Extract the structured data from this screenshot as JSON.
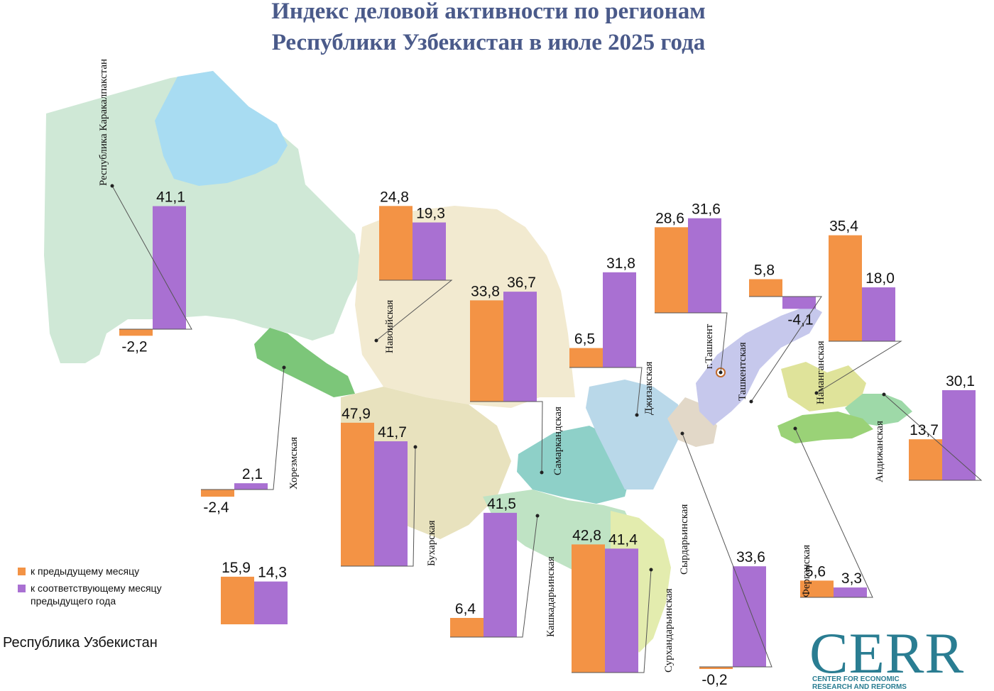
{
  "title": [
    "Индекс деловой активности по регионам",
    "Республики Узбекистан в июле 2025 года"
  ],
  "colors": {
    "month": "#f39345",
    "year": "#a970d2",
    "title": "#4a5a8a",
    "brand": "#2a7d92"
  },
  "legend": {
    "month": "к предыдущему месяцу",
    "year_line1": "к соответствующему месяцу",
    "year_line2": "предыдущего года"
  },
  "country_label": "Республика Узбекистан",
  "logo": {
    "big": "CERR",
    "line1": "CENTER FOR ECONOMIC",
    "line2": "RESEARCH AND REFORMS"
  },
  "chart_data": {
    "type": "bar",
    "series": [
      {
        "name": "к предыдущему месяцу",
        "key": "month"
      },
      {
        "name": "к соответствующему месяцу предыдущего года",
        "key": "year"
      }
    ],
    "regions": [
      {
        "name": "Республика Каракалпакстан",
        "month": -2.2,
        "year": 41.1,
        "month_label": "-2,2",
        "year_label": "41,1"
      },
      {
        "name": "Хорезмская",
        "month": -2.4,
        "year": 2.1,
        "month_label": "-2,4",
        "year_label": "2,1"
      },
      {
        "name": "Навоийская",
        "month": 24.8,
        "year": 19.3,
        "month_label": "24,8",
        "year_label": "19,3"
      },
      {
        "name": "Бухарская",
        "month": 47.9,
        "year": 41.7,
        "month_label": "47,9",
        "year_label": "41,7"
      },
      {
        "name": "Самаркандская",
        "month": 33.8,
        "year": 36.7,
        "month_label": "33,8",
        "year_label": "36,7"
      },
      {
        "name": "Кашкадарьинская",
        "month": 6.4,
        "year": 41.5,
        "month_label": "6,4",
        "year_label": "41,5"
      },
      {
        "name": "Сурхандарьинская",
        "month": 42.8,
        "year": 41.4,
        "month_label": "42,8",
        "year_label": "41,4"
      },
      {
        "name": "Джизакская",
        "month": 6.5,
        "year": 31.8,
        "month_label": "6,5",
        "year_label": "31,8"
      },
      {
        "name": "Сырдарьинская",
        "month": -0.2,
        "year": 33.6,
        "month_label": "-0,2",
        "year_label": "33,6"
      },
      {
        "name": "г.Ташкент",
        "month": 28.6,
        "year": 31.6,
        "month_label": "28,6",
        "year_label": "31,6"
      },
      {
        "name": "Ташкентская",
        "month": 5.8,
        "year": -4.1,
        "month_label": "5,8",
        "year_label": "-4,1"
      },
      {
        "name": "Наманганская",
        "month": 35.4,
        "year": 18.0,
        "month_label": "35,4",
        "year_label": "18,0"
      },
      {
        "name": "Андижанская",
        "month": 13.7,
        "year": 30.1,
        "month_label": "13,7",
        "year_label": "30,1"
      },
      {
        "name": "Ферганская",
        "month": 5.6,
        "year": 3.3,
        "month_label": "5,6",
        "year_label": "3,3"
      }
    ],
    "country": {
      "name": "Республика Узбекистан",
      "month": 15.9,
      "year": 14.3,
      "month_label": "15,9",
      "year_label": "14,3"
    }
  }
}
